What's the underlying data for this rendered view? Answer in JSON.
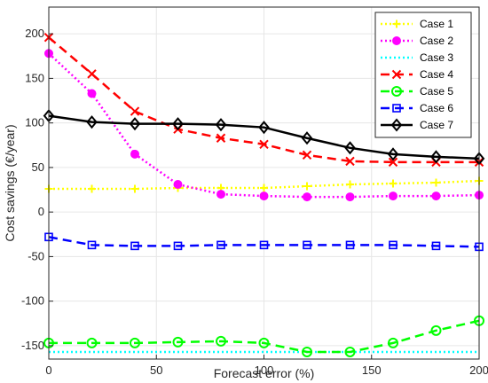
{
  "chart_data": {
    "type": "line",
    "xlabel": "Forecast error (%)",
    "ylabel": "Cost savings (€/year)",
    "xlim": [
      0,
      200
    ],
    "ylim": [
      -165,
      230
    ],
    "xticks": [
      0,
      50,
      100,
      150,
      200
    ],
    "yticks": [
      -150,
      -100,
      -50,
      0,
      50,
      100,
      150,
      200
    ],
    "grid": true,
    "legend_position": "top-right",
    "x": [
      0,
      20,
      40,
      60,
      80,
      100,
      120,
      140,
      160,
      180,
      200
    ],
    "series": [
      {
        "name": "Case 1",
        "color": "#ffff00",
        "dash": "dotted",
        "marker": "plus",
        "values": [
          26,
          26,
          26,
          27,
          27,
          27,
          29,
          31,
          32,
          33,
          35
        ]
      },
      {
        "name": "Case 2",
        "color": "#ff00ff",
        "dash": "dotted",
        "marker": "circle-filled",
        "values": [
          178,
          133,
          65,
          31,
          20,
          18,
          17,
          17,
          18,
          18,
          19
        ]
      },
      {
        "name": "Case 3",
        "color": "#00ffff",
        "dash": "dotted",
        "marker": "none",
        "values": [
          -157,
          -157,
          -157,
          -157,
          -157,
          -157,
          -157,
          -157,
          -157,
          -157,
          -157
        ]
      },
      {
        "name": "Case 4",
        "color": "#ff0000",
        "dash": "dashed",
        "marker": "x",
        "values": [
          196,
          155,
          113,
          93,
          83,
          76,
          64,
          57,
          56,
          56,
          56
        ]
      },
      {
        "name": "Case 5",
        "color": "#00ff00",
        "dash": "dashed",
        "marker": "circle-open",
        "values": [
          -147,
          -147,
          -147,
          -146,
          -145,
          -147,
          -157,
          -157,
          -147,
          -133,
          -122
        ]
      },
      {
        "name": "Case 6",
        "color": "#0000ff",
        "dash": "dashed",
        "marker": "square-open",
        "values": [
          -28,
          -37,
          -38,
          -38,
          -37,
          -37,
          -37,
          -37,
          -37,
          -38,
          -39
        ]
      },
      {
        "name": "Case 7",
        "color": "#000000",
        "dash": "solid",
        "marker": "diamond-open",
        "values": [
          108,
          101,
          99,
          99,
          98,
          95,
          83,
          72,
          65,
          62,
          60
        ]
      }
    ]
  }
}
